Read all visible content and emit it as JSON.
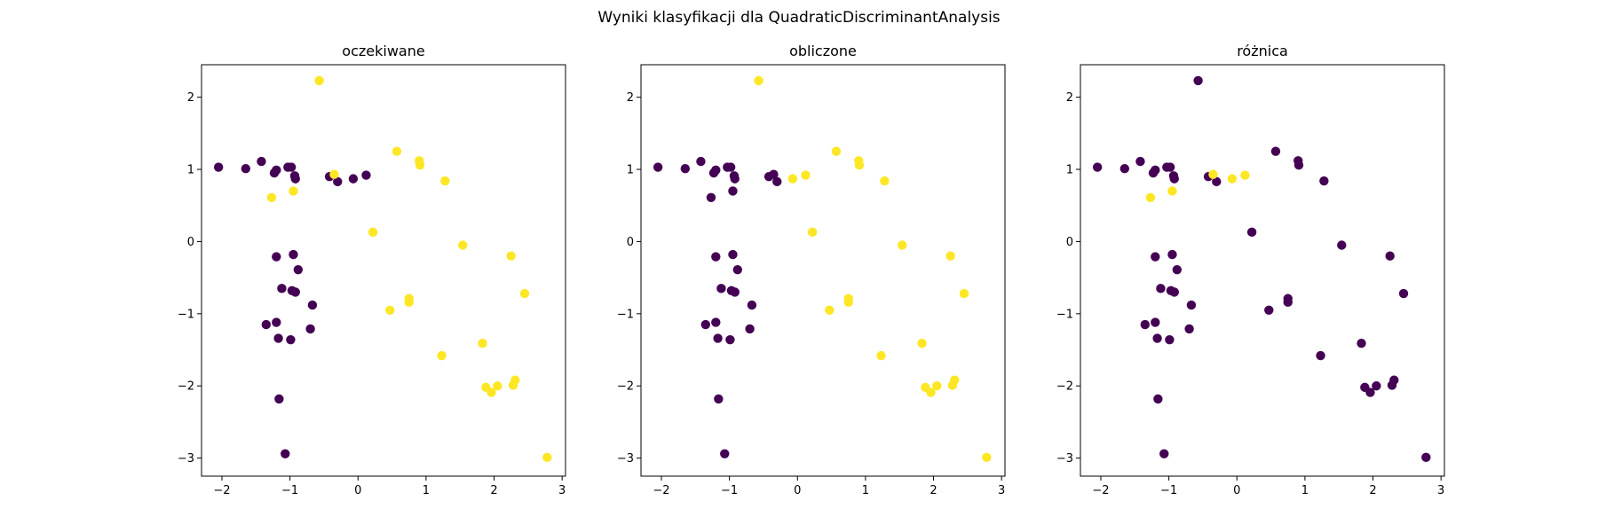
{
  "figure": {
    "title": "Wyniki klasyfikacji dla QuadraticDiscriminantAnalysis"
  },
  "colors": {
    "class_0": "#440154",
    "class_1": "#fde725"
  },
  "chart_data": [
    {
      "type": "scatter",
      "title": "oczekiwane",
      "xlim": [
        -2.3,
        3.05
      ],
      "ylim": [
        -3.25,
        2.45
      ],
      "xticks": [
        -2,
        -1,
        0,
        1,
        2,
        3
      ],
      "yticks": [
        -3,
        -2,
        -1,
        0,
        1,
        2
      ],
      "xtick_labels": [
        "−2",
        "−1",
        "0",
        "1",
        "2",
        "3"
      ],
      "ytick_labels": [
        "−3",
        "−2",
        "−1",
        "0",
        "1",
        "2"
      ],
      "grid": false,
      "legend": "none",
      "points": [
        {
          "x": -2.05,
          "y": 1.03,
          "c": 0
        },
        {
          "x": -1.65,
          "y": 1.01,
          "c": 0
        },
        {
          "x": -1.42,
          "y": 1.11,
          "c": 0
        },
        {
          "x": -1.23,
          "y": 0.95,
          "c": 0
        },
        {
          "x": -1.2,
          "y": 0.99,
          "c": 0
        },
        {
          "x": -1.03,
          "y": 1.03,
          "c": 0
        },
        {
          "x": -0.98,
          "y": 1.03,
          "c": 0
        },
        {
          "x": -0.93,
          "y": 0.91,
          "c": 0
        },
        {
          "x": -0.92,
          "y": 0.87,
          "c": 0
        },
        {
          "x": -0.42,
          "y": 0.9,
          "c": 0
        },
        {
          "x": -0.3,
          "y": 0.83,
          "c": 0
        },
        {
          "x": -0.07,
          "y": 0.87,
          "c": 0
        },
        {
          "x": 0.12,
          "y": 0.92,
          "c": 0
        },
        {
          "x": -1.2,
          "y": -0.21,
          "c": 0
        },
        {
          "x": -0.95,
          "y": -0.18,
          "c": 0
        },
        {
          "x": -0.88,
          "y": -0.39,
          "c": 0
        },
        {
          "x": -1.12,
          "y": -0.65,
          "c": 0
        },
        {
          "x": -0.97,
          "y": -0.68,
          "c": 0
        },
        {
          "x": -0.92,
          "y": -0.7,
          "c": 0
        },
        {
          "x": -0.67,
          "y": -0.88,
          "c": 0
        },
        {
          "x": -1.35,
          "y": -1.15,
          "c": 0
        },
        {
          "x": -1.2,
          "y": -1.12,
          "c": 0
        },
        {
          "x": -0.7,
          "y": -1.21,
          "c": 0
        },
        {
          "x": -1.17,
          "y": -1.34,
          "c": 0
        },
        {
          "x": -0.99,
          "y": -1.36,
          "c": 0
        },
        {
          "x": -1.16,
          "y": -2.18,
          "c": 0
        },
        {
          "x": -1.07,
          "y": -2.94,
          "c": 0
        },
        {
          "x": -0.57,
          "y": 2.23,
          "c": 1
        },
        {
          "x": 0.57,
          "y": 1.25,
          "c": 1
        },
        {
          "x": 0.9,
          "y": 1.12,
          "c": 1
        },
        {
          "x": 0.91,
          "y": 1.06,
          "c": 1
        },
        {
          "x": 1.28,
          "y": 0.84,
          "c": 1
        },
        {
          "x": -0.35,
          "y": 0.93,
          "c": 1
        },
        {
          "x": -0.95,
          "y": 0.7,
          "c": 1
        },
        {
          "x": -1.27,
          "y": 0.61,
          "c": 1
        },
        {
          "x": 0.22,
          "y": 0.13,
          "c": 1
        },
        {
          "x": 1.54,
          "y": -0.05,
          "c": 1
        },
        {
          "x": 2.25,
          "y": -0.2,
          "c": 1
        },
        {
          "x": 2.45,
          "y": -0.72,
          "c": 1
        },
        {
          "x": 0.75,
          "y": -0.79,
          "c": 1
        },
        {
          "x": 0.75,
          "y": -0.84,
          "c": 1
        },
        {
          "x": 0.47,
          "y": -0.95,
          "c": 1
        },
        {
          "x": 1.83,
          "y": -1.41,
          "c": 1
        },
        {
          "x": 1.23,
          "y": -1.58,
          "c": 1
        },
        {
          "x": 1.88,
          "y": -2.02,
          "c": 1
        },
        {
          "x": 1.96,
          "y": -2.09,
          "c": 1
        },
        {
          "x": 2.05,
          "y": -2.0,
          "c": 1
        },
        {
          "x": 2.28,
          "y": -1.99,
          "c": 1
        },
        {
          "x": 2.31,
          "y": -1.92,
          "c": 1
        },
        {
          "x": 2.78,
          "y": -2.99,
          "c": 1
        }
      ]
    },
    {
      "type": "scatter",
      "title": "obliczone",
      "xlim": [
        -2.3,
        3.05
      ],
      "ylim": [
        -3.25,
        2.45
      ],
      "xticks": [
        -2,
        -1,
        0,
        1,
        2,
        3
      ],
      "yticks": [
        -3,
        -2,
        -1,
        0,
        1,
        2
      ],
      "xtick_labels": [
        "−2",
        "−1",
        "0",
        "1",
        "2",
        "3"
      ],
      "ytick_labels": [
        "−3",
        "−2",
        "−1",
        "0",
        "1",
        "2"
      ],
      "grid": false,
      "legend": "none",
      "points": [
        {
          "x": -2.05,
          "y": 1.03,
          "c": 0
        },
        {
          "x": -1.65,
          "y": 1.01,
          "c": 0
        },
        {
          "x": -1.42,
          "y": 1.11,
          "c": 0
        },
        {
          "x": -1.23,
          "y": 0.95,
          "c": 0
        },
        {
          "x": -1.2,
          "y": 0.99,
          "c": 0
        },
        {
          "x": -1.03,
          "y": 1.03,
          "c": 0
        },
        {
          "x": -0.98,
          "y": 1.03,
          "c": 0
        },
        {
          "x": -0.93,
          "y": 0.91,
          "c": 0
        },
        {
          "x": -0.92,
          "y": 0.87,
          "c": 0
        },
        {
          "x": -0.42,
          "y": 0.9,
          "c": 0
        },
        {
          "x": -0.3,
          "y": 0.83,
          "c": 0
        },
        {
          "x": -0.35,
          "y": 0.93,
          "c": 0
        },
        {
          "x": -0.95,
          "y": 0.7,
          "c": 0
        },
        {
          "x": -1.27,
          "y": 0.61,
          "c": 0
        },
        {
          "x": -1.2,
          "y": -0.21,
          "c": 0
        },
        {
          "x": -0.95,
          "y": -0.18,
          "c": 0
        },
        {
          "x": -0.88,
          "y": -0.39,
          "c": 0
        },
        {
          "x": -1.12,
          "y": -0.65,
          "c": 0
        },
        {
          "x": -0.97,
          "y": -0.68,
          "c": 0
        },
        {
          "x": -0.92,
          "y": -0.7,
          "c": 0
        },
        {
          "x": -0.67,
          "y": -0.88,
          "c": 0
        },
        {
          "x": -1.35,
          "y": -1.15,
          "c": 0
        },
        {
          "x": -1.2,
          "y": -1.12,
          "c": 0
        },
        {
          "x": -0.7,
          "y": -1.21,
          "c": 0
        },
        {
          "x": -1.17,
          "y": -1.34,
          "c": 0
        },
        {
          "x": -0.99,
          "y": -1.36,
          "c": 0
        },
        {
          "x": -1.16,
          "y": -2.18,
          "c": 0
        },
        {
          "x": -1.07,
          "y": -2.94,
          "c": 0
        },
        {
          "x": -0.57,
          "y": 2.23,
          "c": 1
        },
        {
          "x": 0.57,
          "y": 1.25,
          "c": 1
        },
        {
          "x": 0.9,
          "y": 1.12,
          "c": 1
        },
        {
          "x": 0.91,
          "y": 1.06,
          "c": 1
        },
        {
          "x": 1.28,
          "y": 0.84,
          "c": 1
        },
        {
          "x": -0.07,
          "y": 0.87,
          "c": 1
        },
        {
          "x": 0.12,
          "y": 0.92,
          "c": 1
        },
        {
          "x": 0.22,
          "y": 0.13,
          "c": 1
        },
        {
          "x": 1.54,
          "y": -0.05,
          "c": 1
        },
        {
          "x": 2.25,
          "y": -0.2,
          "c": 1
        },
        {
          "x": 2.45,
          "y": -0.72,
          "c": 1
        },
        {
          "x": 0.75,
          "y": -0.79,
          "c": 1
        },
        {
          "x": 0.75,
          "y": -0.84,
          "c": 1
        },
        {
          "x": 0.47,
          "y": -0.95,
          "c": 1
        },
        {
          "x": 1.83,
          "y": -1.41,
          "c": 1
        },
        {
          "x": 1.23,
          "y": -1.58,
          "c": 1
        },
        {
          "x": 1.88,
          "y": -2.02,
          "c": 1
        },
        {
          "x": 1.96,
          "y": -2.09,
          "c": 1
        },
        {
          "x": 2.05,
          "y": -2.0,
          "c": 1
        },
        {
          "x": 2.28,
          "y": -1.99,
          "c": 1
        },
        {
          "x": 2.31,
          "y": -1.92,
          "c": 1
        },
        {
          "x": 2.78,
          "y": -2.99,
          "c": 1
        }
      ]
    },
    {
      "type": "scatter",
      "title": "różnica",
      "xlim": [
        -2.3,
        3.05
      ],
      "ylim": [
        -3.25,
        2.45
      ],
      "xticks": [
        -2,
        -1,
        0,
        1,
        2,
        3
      ],
      "yticks": [
        -3,
        -2,
        -1,
        0,
        1,
        2
      ],
      "xtick_labels": [
        "−2",
        "−1",
        "0",
        "1",
        "2",
        "3"
      ],
      "ytick_labels": [
        "−3",
        "−2",
        "−1",
        "0",
        "1",
        "2"
      ],
      "grid": false,
      "legend": "none",
      "points": [
        {
          "x": -2.05,
          "y": 1.03,
          "c": 0
        },
        {
          "x": -1.65,
          "y": 1.01,
          "c": 0
        },
        {
          "x": -1.42,
          "y": 1.11,
          "c": 0
        },
        {
          "x": -1.23,
          "y": 0.95,
          "c": 0
        },
        {
          "x": -1.2,
          "y": 0.99,
          "c": 0
        },
        {
          "x": -1.03,
          "y": 1.03,
          "c": 0
        },
        {
          "x": -0.98,
          "y": 1.03,
          "c": 0
        },
        {
          "x": -0.93,
          "y": 0.91,
          "c": 0
        },
        {
          "x": -0.92,
          "y": 0.87,
          "c": 0
        },
        {
          "x": -0.42,
          "y": 0.9,
          "c": 0
        },
        {
          "x": -0.3,
          "y": 0.83,
          "c": 0
        },
        {
          "x": -0.57,
          "y": 2.23,
          "c": 0
        },
        {
          "x": 0.57,
          "y": 1.25,
          "c": 0
        },
        {
          "x": 0.9,
          "y": 1.12,
          "c": 0
        },
        {
          "x": 0.91,
          "y": 1.06,
          "c": 0
        },
        {
          "x": 1.28,
          "y": 0.84,
          "c": 0
        },
        {
          "x": -0.35,
          "y": 0.93,
          "c": 1
        },
        {
          "x": -0.95,
          "y": 0.7,
          "c": 1
        },
        {
          "x": -1.27,
          "y": 0.61,
          "c": 1
        },
        {
          "x": -0.07,
          "y": 0.87,
          "c": 1
        },
        {
          "x": 0.12,
          "y": 0.92,
          "c": 1
        },
        {
          "x": 0.22,
          "y": 0.13,
          "c": 0
        },
        {
          "x": -1.2,
          "y": -0.21,
          "c": 0
        },
        {
          "x": -0.95,
          "y": -0.18,
          "c": 0
        },
        {
          "x": -0.88,
          "y": -0.39,
          "c": 0
        },
        {
          "x": -1.12,
          "y": -0.65,
          "c": 0
        },
        {
          "x": -0.97,
          "y": -0.68,
          "c": 0
        },
        {
          "x": -0.92,
          "y": -0.7,
          "c": 0
        },
        {
          "x": -0.67,
          "y": -0.88,
          "c": 0
        },
        {
          "x": -1.35,
          "y": -1.15,
          "c": 0
        },
        {
          "x": -1.2,
          "y": -1.12,
          "c": 0
        },
        {
          "x": -0.7,
          "y": -1.21,
          "c": 0
        },
        {
          "x": -1.17,
          "y": -1.34,
          "c": 0
        },
        {
          "x": -0.99,
          "y": -1.36,
          "c": 0
        },
        {
          "x": -1.16,
          "y": -2.18,
          "c": 0
        },
        {
          "x": -1.07,
          "y": -2.94,
          "c": 0
        },
        {
          "x": 1.54,
          "y": -0.05,
          "c": 0
        },
        {
          "x": 2.25,
          "y": -0.2,
          "c": 0
        },
        {
          "x": 2.45,
          "y": -0.72,
          "c": 0
        },
        {
          "x": 0.75,
          "y": -0.79,
          "c": 0
        },
        {
          "x": 0.75,
          "y": -0.84,
          "c": 0
        },
        {
          "x": 0.47,
          "y": -0.95,
          "c": 0
        },
        {
          "x": 1.83,
          "y": -1.41,
          "c": 0
        },
        {
          "x": 1.23,
          "y": -1.58,
          "c": 0
        },
        {
          "x": 1.88,
          "y": -2.02,
          "c": 0
        },
        {
          "x": 1.96,
          "y": -2.09,
          "c": 0
        },
        {
          "x": 2.05,
          "y": -2.0,
          "c": 0
        },
        {
          "x": 2.28,
          "y": -1.99,
          "c": 0
        },
        {
          "x": 2.31,
          "y": -1.92,
          "c": 0
        },
        {
          "x": 2.78,
          "y": -2.99,
          "c": 0
        }
      ]
    }
  ]
}
